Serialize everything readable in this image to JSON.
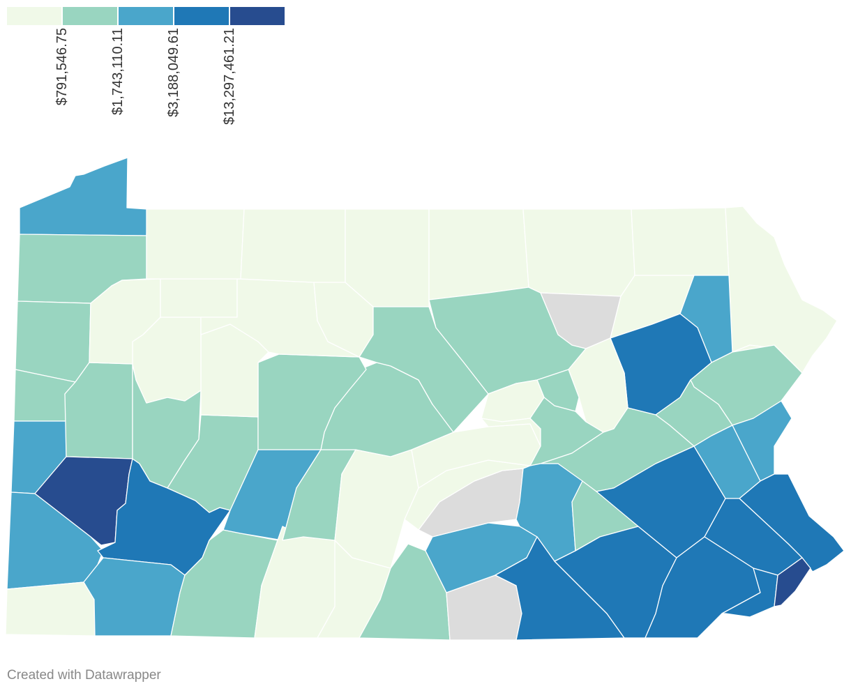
{
  "legend": {
    "colors": [
      "#f0f9e8",
      "#99d5c0",
      "#4aa6cb",
      "#1f78b6",
      "#274c8f"
    ],
    "thresholds": [
      "$791,546.75",
      "$1,743,110.11",
      "$3,188,049.61",
      "$13,297,461.21"
    ]
  },
  "map": {
    "no_data_color": "#dcdcdc",
    "region": "Pennsylvania counties"
  },
  "footer": {
    "credit": "Created with Datawrapper"
  }
}
